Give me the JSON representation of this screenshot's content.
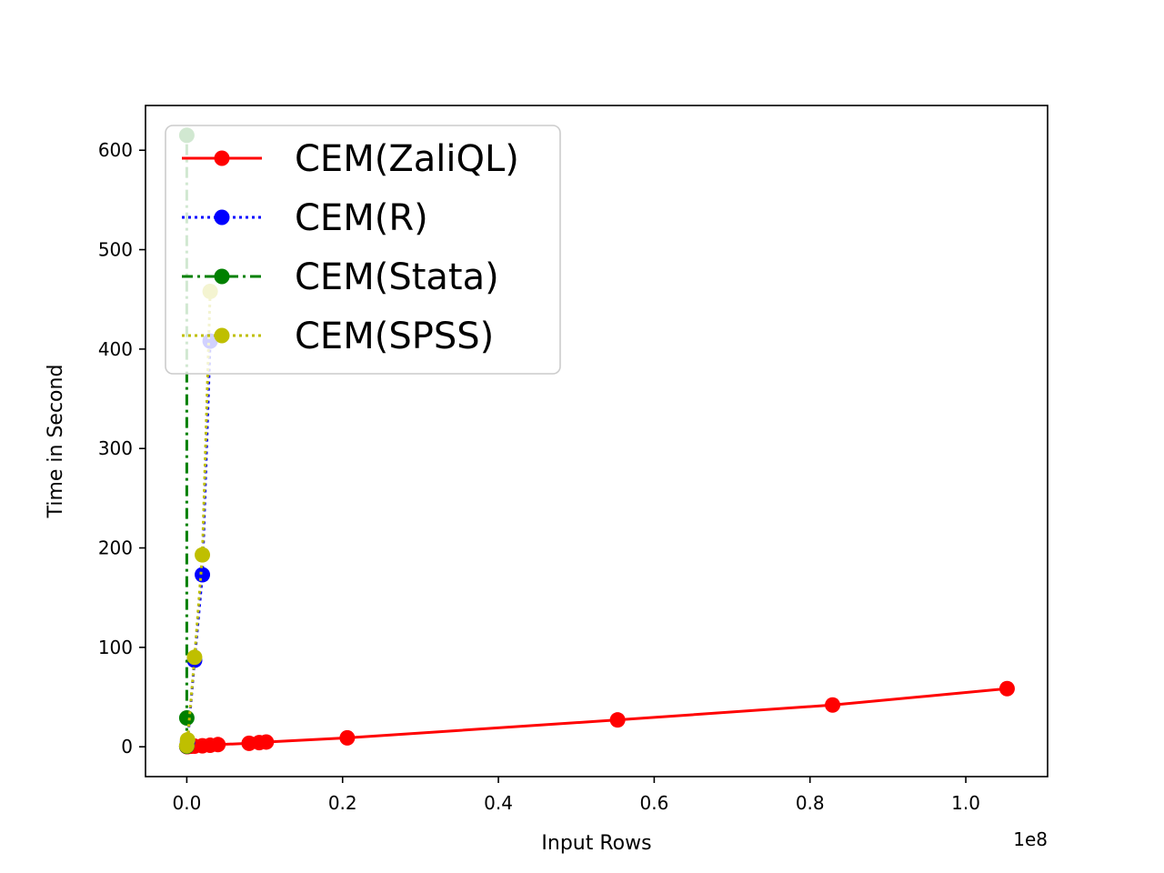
{
  "chart_data": {
    "type": "line",
    "title": "",
    "xlabel": "Input Rows",
    "ylabel": "Time in Second",
    "x_offset_label": "1e8",
    "xlim": [
      -5300000,
      110500000
    ],
    "ylim": [
      -30,
      645
    ],
    "x_ticks": [
      0,
      20000000,
      40000000,
      60000000,
      80000000,
      100000000
    ],
    "x_tick_labels": [
      "0.0",
      "0.2",
      "0.4",
      "0.6",
      "0.8",
      "1.0"
    ],
    "y_ticks": [
      0,
      100,
      200,
      300,
      400,
      500,
      600
    ],
    "y_tick_labels": [
      "0",
      "100",
      "200",
      "300",
      "400",
      "500",
      "600"
    ],
    "grid": false,
    "legend_position": "upper-left",
    "series": [
      {
        "name": "CEM(ZaliQL)",
        "color": "#ff0000",
        "line_style": "solid",
        "x": [
          0,
          100000,
          200000,
          500000,
          1000000,
          2000000,
          3000000,
          4000000,
          8000000,
          9300000,
          10200000,
          20600000,
          55300000,
          82900000,
          105300000
        ],
        "y": [
          0.2,
          0.3,
          0.4,
          0.5,
          0.6,
          1.0,
          1.5,
          2.2,
          3.5,
          4.2,
          4.8,
          9.0,
          27.0,
          42.0,
          58.5
        ]
      },
      {
        "name": "CEM(R)",
        "color": "#0000ff",
        "line_style": "dotted",
        "x": [
          0,
          100000,
          1000000,
          2000000,
          3000000
        ],
        "y": [
          0.5,
          5.0,
          87.0,
          173.0,
          408.0
        ]
      },
      {
        "name": "CEM(Stata)",
        "color": "#008000",
        "line_style": "dashdot",
        "x": [
          0,
          0,
          0
        ],
        "y": [
          0.5,
          29.0,
          615.0
        ]
      },
      {
        "name": "CEM(SPSS)",
        "color": "#bfbf00",
        "line_style": "dotted",
        "x": [
          0,
          100000,
          1000000,
          2000000,
          3000000
        ],
        "y": [
          1.0,
          7.0,
          90.0,
          193.0,
          458.0
        ]
      }
    ]
  }
}
